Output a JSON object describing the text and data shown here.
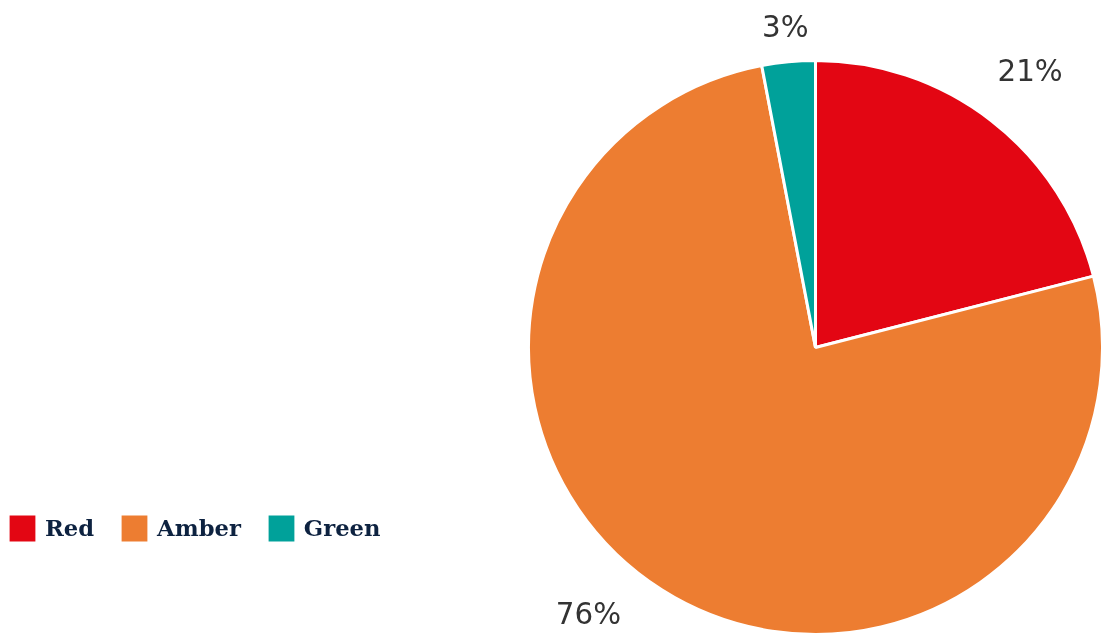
{
  "chart_data": {
    "type": "pie",
    "categories": [
      "Red",
      "Amber",
      "Green"
    ],
    "values": [
      21,
      76,
      3
    ],
    "colors": [
      "#e30613",
      "#ed7d31",
      "#00a19a"
    ],
    "value_labels": [
      "21%",
      "76%",
      "3%"
    ],
    "legend": "bottom left"
  }
}
